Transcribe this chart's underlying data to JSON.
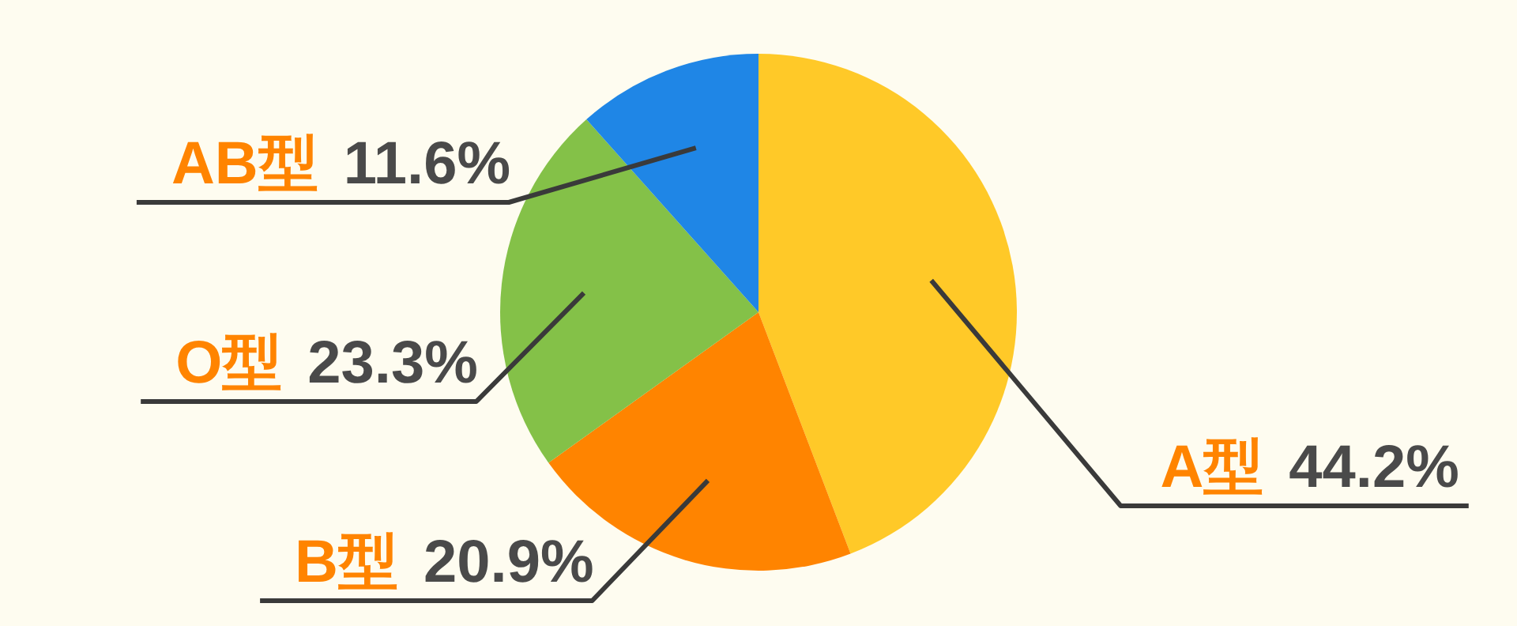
{
  "chart_data": {
    "type": "pie",
    "categories": [
      "A型",
      "B型",
      "O型",
      "AB型"
    ],
    "values": [
      44.2,
      20.9,
      23.3,
      11.6
    ],
    "value_labels": [
      "44.2%",
      "20.9%",
      "23.3%",
      "11.6%"
    ],
    "colors": [
      "#ffc928",
      "#ff8400",
      "#84c148",
      "#1f86e6"
    ]
  }
}
